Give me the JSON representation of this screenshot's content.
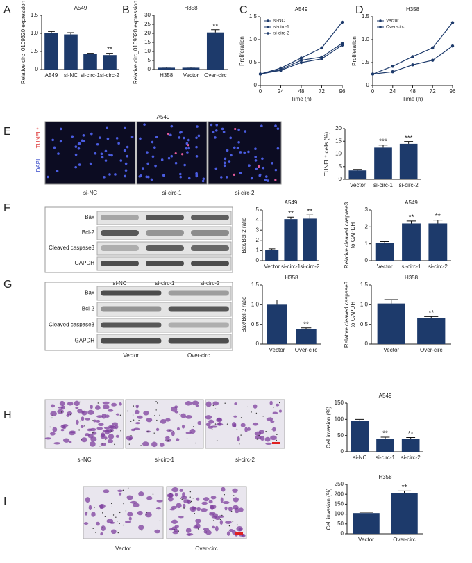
{
  "panel_labels": [
    "A",
    "B",
    "C",
    "D",
    "E",
    "F",
    "G",
    "H",
    "I"
  ],
  "tunel_images": {
    "title": "A549",
    "stain_labels": [
      "TUNEL⁺",
      "DAPI"
    ],
    "lanes": [
      "si-NC",
      "si-circ-1",
      "si-circ-2"
    ]
  },
  "blots_f": {
    "proteins": [
      "Bax",
      "Bcl-2",
      "Cleaved caspase3",
      "GAPDH"
    ],
    "lanes": [
      "si-NC",
      "si-circ-1",
      "si-circ-2"
    ]
  },
  "blots_g": {
    "proteins": [
      "Bax",
      "Bcl-2",
      "Cleaved caspase3",
      "GAPDH"
    ],
    "lanes": [
      "Vector",
      "Over-circ"
    ]
  },
  "invasion_h": {
    "lanes": [
      "si-NC",
      "si-circ-1",
      "si-circ-2"
    ]
  },
  "invasion_i": {
    "lanes": [
      "Vector",
      "Over-circ"
    ]
  },
  "chart_data": [
    {
      "type": "bar",
      "title": "A549",
      "ylabel": [
        "Relative circ_0109320 expression"
      ],
      "categories": [
        "A549",
        "si-NC",
        "si-circ-1",
        "si-circ-2"
      ],
      "values": [
        1.0,
        0.97,
        0.43,
        0.4
      ],
      "errors": [
        0.05,
        0.05,
        0.02,
        0.05
      ],
      "significance": [
        null,
        null,
        null,
        "**"
      ],
      "color": "#1d3a6b",
      "ylim": [
        0,
        1.5
      ],
      "yticks": [
        0,
        0.5,
        {
          "value": 1,
          "label": "1.0"
        },
        1.5
      ]
    },
    {
      "type": "bar",
      "title": "H358",
      "ylabel": [
        "Relative circ_0109320 expression"
      ],
      "categories": [
        "H358",
        "Vector",
        "Over-circ"
      ],
      "values": [
        1,
        1,
        20.5
      ],
      "errors": [
        0.3,
        0.3,
        1.5
      ],
      "significance": [
        null,
        null,
        "**"
      ],
      "color": "#1d3a6b",
      "ylim": [
        0,
        30
      ],
      "yticks": [
        0,
        5,
        10,
        15,
        20,
        25,
        30
      ]
    },
    {
      "type": "line",
      "title": "A549",
      "xlabel": "Time (h)",
      "ylabel": [
        "Proliferation"
      ],
      "x": [
        0,
        24,
        48,
        72,
        96
      ],
      "series": [
        {
          "name": "si-NC",
          "color": "#1d3a6b",
          "values": [
            0.25,
            0.38,
            0.6,
            0.82,
            1.38
          ]
        },
        {
          "name": "si-circ-1",
          "color": "#1d3a6b",
          "values": [
            0.25,
            0.35,
            0.55,
            0.62,
            0.92
          ]
        },
        {
          "name": "si-circ-2",
          "color": "#1d3a6b",
          "values": [
            0.25,
            0.33,
            0.5,
            0.58,
            0.88
          ]
        }
      ],
      "xlim": [
        0,
        96
      ],
      "xticks": [
        0,
        24,
        48,
        72,
        96
      ],
      "ylim": [
        0,
        1.5
      ],
      "yticks": [
        0,
        0.5,
        {
          "value": 1,
          "label": "1.0"
        },
        1.5
      ],
      "legend": "upper left"
    },
    {
      "type": "line",
      "title": "H358",
      "xlabel": "Time (h)",
      "ylabel": [
        "Proliferation"
      ],
      "x": [
        0,
        24,
        48,
        72,
        96
      ],
      "series": [
        {
          "name": "Vector",
          "color": "#1d3a6b",
          "values": [
            0.25,
            0.3,
            0.45,
            0.55,
            0.86
          ]
        },
        {
          "name": "Over-circ",
          "color": "#1d3a6b",
          "values": [
            0.25,
            0.42,
            0.63,
            0.82,
            1.37
          ]
        }
      ],
      "xlim": [
        0,
        96
      ],
      "xticks": [
        0,
        24,
        48,
        72,
        96
      ],
      "ylim": [
        0,
        1.5
      ],
      "yticks": [
        0,
        0.5,
        {
          "value": 1,
          "label": "1.0"
        },
        1.5
      ],
      "legend": "upper left"
    },
    {
      "type": "bar",
      "ylabel": [
        "TUNEL⁺ cells (%)"
      ],
      "categories": [
        "Vector",
        "si-circ-1",
        "si-circ-2"
      ],
      "values": [
        3.5,
        12.5,
        14
      ],
      "errors": [
        0.4,
        1,
        0.9
      ],
      "significance": [
        null,
        "***",
        "***"
      ],
      "color": "#1d3a6b",
      "ylim": [
        0,
        20
      ],
      "yticks": [
        0,
        5,
        10,
        15,
        20
      ]
    },
    {
      "type": "bar",
      "title": "A549",
      "ylabel": [
        "Bax/Bcl-2 ratio"
      ],
      "categories": [
        "Vector",
        "si-circ-1",
        "si-circ-2"
      ],
      "values": [
        1.05,
        4.1,
        4.15
      ],
      "errors": [
        0.12,
        0.2,
        0.35
      ],
      "significance": [
        null,
        "**",
        "**"
      ],
      "color": "#1d3a6b",
      "ylim": [
        0,
        5
      ],
      "yticks": [
        0,
        1,
        2,
        3,
        4,
        5
      ]
    },
    {
      "type": "bar",
      "title": "A549",
      "ylabel": [
        "Relative cleaved caspase3",
        "to GAPDH"
      ],
      "categories": [
        "Vector",
        "si-circ-1",
        "si-circ-2"
      ],
      "values": [
        1.05,
        2.2,
        2.2
      ],
      "errors": [
        0.08,
        0.15,
        0.2
      ],
      "significance": [
        null,
        "**",
        "**"
      ],
      "color": "#1d3a6b",
      "ylim": [
        0,
        3
      ],
      "yticks": [
        0,
        1,
        2,
        3
      ]
    },
    {
      "type": "bar",
      "title": "H358",
      "ylabel": [
        "Bax/Bcl-2 ratio"
      ],
      "categories": [
        "Vector",
        "Over-circ"
      ],
      "values": [
        1.0,
        0.38
      ],
      "errors": [
        0.12,
        0.03
      ],
      "significance": [
        null,
        "**"
      ],
      "color": "#1d3a6b",
      "ylim": [
        0,
        1.5
      ],
      "yticks": [
        0,
        0.5,
        {
          "value": 1,
          "label": "1.0"
        },
        1.5
      ]
    },
    {
      "type": "bar",
      "title": "H358",
      "ylabel": [
        "Relative cleaved caspase3",
        "to GAPDH"
      ],
      "categories": [
        "Vector",
        "Over-circ"
      ],
      "values": [
        1.03,
        0.67
      ],
      "errors": [
        0.1,
        0.03
      ],
      "significance": [
        null,
        "**"
      ],
      "color": "#1d3a6b",
      "ylim": [
        0,
        1.5
      ],
      "yticks": [
        0,
        0.5,
        {
          "value": 1,
          "label": "1.0"
        },
        1.5
      ]
    },
    {
      "type": "bar",
      "title": "A549",
      "ylabel": [
        "Cell invasion (%)"
      ],
      "categories": [
        "si-NC",
        "si-circ-1",
        "si-circ-2"
      ],
      "values": [
        96,
        40,
        39
      ],
      "errors": [
        4,
        5,
        5
      ],
      "significance": [
        null,
        "**",
        "**"
      ],
      "color": "#1d3a6b",
      "ylim": [
        0,
        150
      ],
      "yticks": [
        0,
        50,
        100,
        150
      ]
    },
    {
      "type": "bar",
      "title": "H358",
      "ylabel": [
        "Cell invasion (%)"
      ],
      "categories": [
        "Vector",
        "Over-circ"
      ],
      "values": [
        105,
        207
      ],
      "errors": [
        4,
        10
      ],
      "significance": [
        null,
        "**"
      ],
      "color": "#1d3a6b",
      "ylim": [
        0,
        250
      ],
      "yticks": [
        0,
        50,
        100,
        150,
        200,
        250
      ]
    }
  ]
}
